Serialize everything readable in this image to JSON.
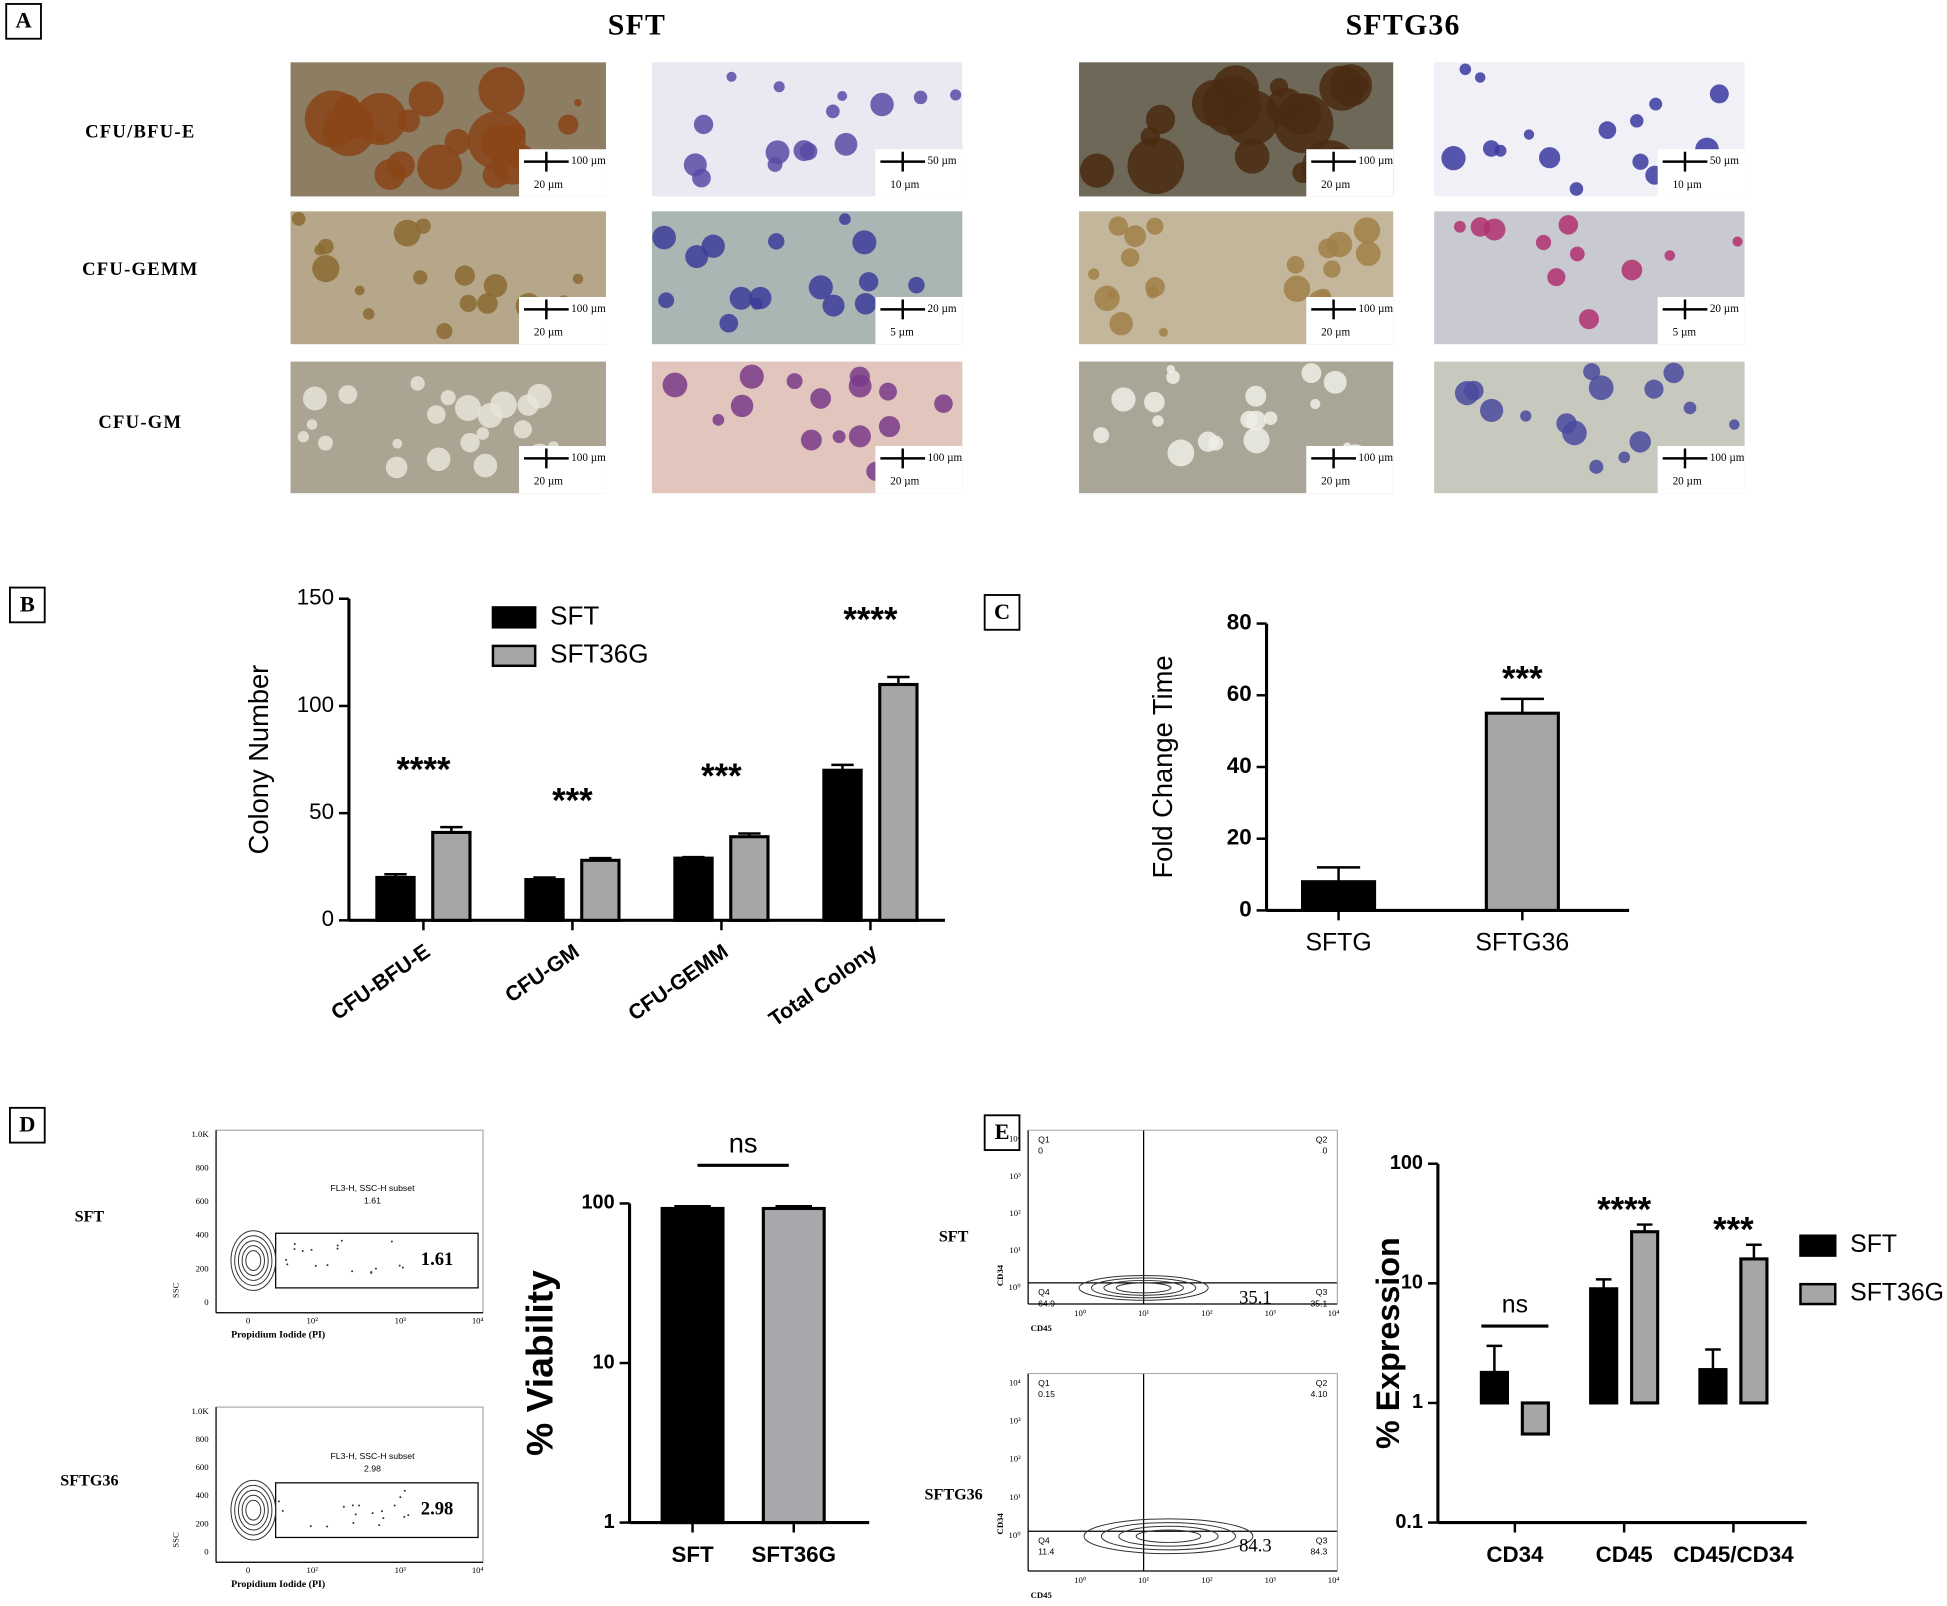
{
  "panels": {
    "a": "A",
    "b": "B",
    "c": "C",
    "d": "D",
    "e": "E"
  },
  "panel_a": {
    "columns": [
      "SFT",
      "SFTG36"
    ],
    "rows": [
      "CFU/BFU-E",
      "CFU-GEMM",
      "CFU-GM"
    ],
    "scale_bars": [
      [
        [
          "100 µm",
          "20 µm"
        ],
        [
          "50 µm",
          "10 µm"
        ],
        [
          "100 µm",
          "20 µm"
        ],
        [
          "50 µm",
          "10 µm"
        ]
      ],
      [
        [
          "100 µm",
          "20 µm"
        ],
        [
          "20 µm",
          "5 µm"
        ],
        [
          "100 µm",
          "20 µm"
        ],
        [
          "20 µm",
          "5 µm"
        ]
      ],
      [
        [
          "100 µm",
          "20 µm"
        ],
        [
          "100 µm",
          "20 µm"
        ],
        [
          "100 µm",
          "20 µm"
        ],
        [
          "100 µm",
          "20 µm"
        ]
      ]
    ]
  },
  "chart_data": [
    {
      "type": "bar",
      "ylabel": "Colony Number",
      "categories": [
        "CFU-BFU-E",
        "CFU-GM",
        "CFU-GEMM",
        "Total Colony"
      ],
      "series": [
        {
          "name": "SFT",
          "color": "#000000",
          "values": [
            20,
            19,
            29,
            70
          ],
          "errors": [
            1.5,
            1,
            0.5,
            2.5
          ]
        },
        {
          "name": "SFT36G",
          "color": "#a6a6a6",
          "values": [
            41,
            28,
            39,
            110
          ],
          "errors": [
            2.5,
            1,
            1.5,
            3.5
          ]
        }
      ],
      "annotations": [
        "****",
        "***",
        "***",
        "****"
      ],
      "ylim": [
        0,
        150
      ],
      "yticks": [
        0,
        50,
        100,
        150
      ],
      "legend": "upper left",
      "grid": false
    },
    {
      "type": "bar",
      "ylabel": "Fold Change Time",
      "categories": [
        "SFTG",
        "SFTG36"
      ],
      "values": [
        8,
        55
      ],
      "errors": [
        4,
        4
      ],
      "colors": [
        "#000000",
        "#a6a6a6"
      ],
      "annotations": [
        null,
        "***"
      ],
      "ylim": [
        0,
        80
      ],
      "yticks": [
        0,
        20,
        40,
        60,
        80
      ],
      "grid": false
    },
    {
      "type": "bar",
      "ylabel": "% Viability",
      "categories": [
        "SFT",
        "SFT36G"
      ],
      "values": [
        93,
        93
      ],
      "errors": [
        3,
        3
      ],
      "colors": [
        "#000000",
        "#a8a8ac"
      ],
      "annotation": "ns",
      "annotation_line": true,
      "log": true,
      "ylim": [
        1,
        100
      ],
      "yticks": [
        1,
        10,
        100
      ],
      "grid": false
    },
    {
      "type": "bar",
      "ylabel": "% Expression",
      "categories": [
        "CD34",
        "CD45",
        "CD45/CD34"
      ],
      "series": [
        {
          "name": "SFT",
          "color": "#000000",
          "values": [
            1.8,
            9,
            1.9
          ],
          "errors": [
            1.2,
            1.8,
            0.9
          ]
        },
        {
          "name": "SFT36G",
          "color": "#a6a6a6",
          "values": [
            0.55,
            27,
            16
          ],
          "errors": [
            null,
            4,
            5
          ]
        }
      ],
      "annotations": [
        "ns",
        "****",
        "***"
      ],
      "annotation_lines": [
        true,
        false,
        false
      ],
      "log": true,
      "ylim": [
        0.1,
        100
      ],
      "yticks": [
        0.1,
        1,
        10,
        100
      ],
      "legend": "right",
      "grid": false
    }
  ],
  "flow_d": {
    "x_label": "Propidium Iodide (PI)",
    "y_label": "SSC",
    "yticks": [
      "1.0K",
      "800",
      "600",
      "400",
      "200",
      "0"
    ],
    "xticks": [
      "0",
      "10²",
      "10³",
      "10⁴"
    ],
    "plots": [
      {
        "sample": "SFT",
        "gate": "FL3-H, SSC-H subset",
        "gate_value": "1.61",
        "value": "1.61"
      },
      {
        "sample": "SFTG36",
        "gate": "FL3-H, SSC-H subset",
        "gate_value": "2.98",
        "value": "2.98"
      }
    ]
  },
  "flow_e": {
    "x_label": "CD45",
    "y_label": "CD34",
    "ticks": [
      "10⁰",
      "10¹",
      "10²",
      "10³",
      "10⁴"
    ],
    "plots": [
      {
        "sample": "SFT",
        "quadrants": [
          [
            "Q1",
            "0"
          ],
          [
            "Q2",
            "0"
          ],
          [
            "Q4",
            "64.9"
          ],
          [
            "Q3",
            "35.1"
          ]
        ],
        "value": "35.1"
      },
      {
        "sample": "SFTG36",
        "quadrants": [
          [
            "Q1",
            "0.15"
          ],
          [
            "Q2",
            "4.10"
          ],
          [
            "Q4",
            "11.4"
          ],
          [
            "Q3",
            "84.3"
          ]
        ],
        "value": "84.3"
      }
    ]
  }
}
